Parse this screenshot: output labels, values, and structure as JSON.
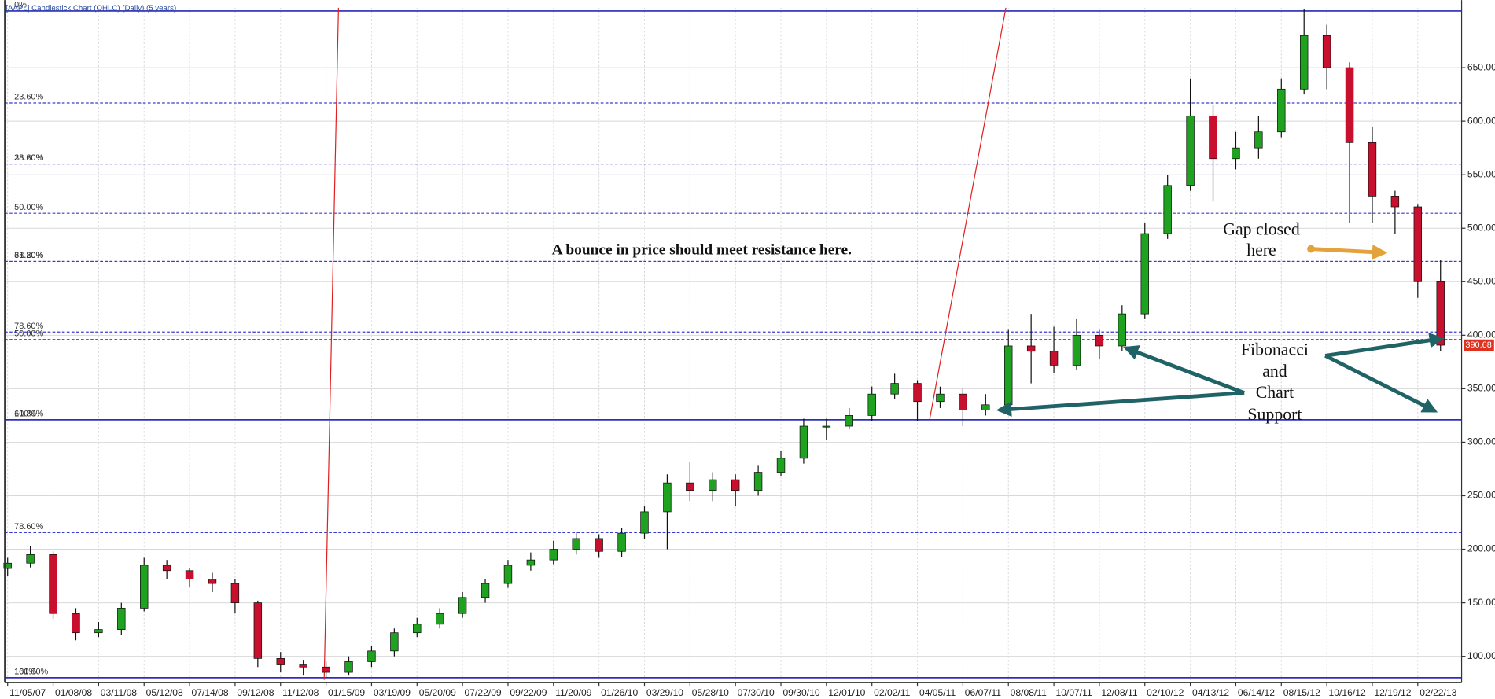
{
  "chart_data": {
    "type": "candlestick",
    "title": "[AAPL] Candlestick Chart (OHLC) (Daily) (5 years)",
    "categories": [
      "11/05/07",
      null,
      "01/08/08",
      null,
      "03/11/08",
      null,
      "05/12/08",
      null,
      "07/14/08",
      null,
      "09/12/08",
      null,
      "11/12/08",
      null,
      "01/15/09",
      null,
      "03/19/09",
      null,
      "05/20/09",
      null,
      "07/22/09",
      null,
      "09/22/09",
      null,
      "11/20/09",
      null,
      "01/26/10",
      null,
      "03/29/10",
      null,
      "05/28/10",
      null,
      "07/30/10",
      null,
      "09/30/10",
      null,
      "12/01/10",
      null,
      "02/02/11",
      null,
      "04/05/11",
      null,
      "06/07/11",
      null,
      "08/08/11",
      null,
      "10/07/11",
      null,
      "12/08/11",
      null,
      "02/10/12",
      null,
      "04/13/12",
      null,
      "06/14/12",
      null,
      "08/15/12",
      null,
      "10/16/12",
      null,
      "12/19/12",
      null,
      "02/22/13",
      null
    ],
    "open": [
      182,
      187,
      195,
      140,
      122,
      125,
      145,
      185,
      180,
      172,
      168,
      150,
      98,
      92,
      90,
      85,
      95,
      105,
      122,
      130,
      140,
      155,
      168,
      185,
      190,
      200,
      210,
      198,
      215,
      235,
      262,
      255,
      265,
      255,
      272,
      285,
      315,
      315,
      325,
      345,
      355,
      338,
      345,
      330,
      335,
      390,
      385,
      372,
      400,
      390,
      420,
      495,
      540,
      605,
      565,
      575,
      590,
      630,
      680,
      650,
      580,
      530,
      520,
      450
    ],
    "high": [
      192,
      203,
      198,
      145,
      132,
      150,
      192,
      190,
      182,
      178,
      172,
      152,
      104,
      96,
      95,
      100,
      110,
      126,
      136,
      145,
      160,
      172,
      190,
      197,
      208,
      215,
      214,
      220,
      240,
      270,
      282,
      272,
      270,
      278,
      292,
      322,
      322,
      332,
      352,
      364,
      358,
      352,
      350,
      345,
      405,
      420,
      408,
      415,
      405,
      428,
      505,
      550,
      640,
      615,
      590,
      605,
      640,
      705,
      690,
      655,
      595,
      535,
      522,
      470
    ],
    "low": [
      175,
      183,
      135,
      115,
      118,
      120,
      142,
      172,
      165,
      160,
      140,
      90,
      85,
      82,
      80,
      82,
      90,
      100,
      118,
      126,
      136,
      150,
      164,
      180,
      186,
      195,
      192,
      193,
      210,
      200,
      245,
      245,
      240,
      250,
      268,
      280,
      302,
      312,
      320,
      340,
      320,
      332,
      315,
      325,
      330,
      355,
      365,
      368,
      378,
      385,
      415,
      490,
      535,
      525,
      555,
      565,
      585,
      625,
      630,
      505,
      505,
      495,
      435,
      385
    ],
    "close": [
      187,
      195,
      140,
      122,
      125,
      145,
      185,
      180,
      172,
      168,
      150,
      98,
      92,
      90,
      85,
      95,
      105,
      122,
      130,
      140,
      155,
      168,
      185,
      190,
      200,
      210,
      198,
      215,
      235,
      262,
      255,
      265,
      255,
      272,
      285,
      315,
      315,
      325,
      345,
      355,
      338,
      345,
      330,
      335,
      390,
      385,
      372,
      400,
      390,
      420,
      495,
      540,
      605,
      565,
      575,
      590,
      630,
      680,
      650,
      580,
      530,
      520,
      450,
      390.68
    ],
    "up_color": "#1fa21f",
    "down_color": "#c8102e",
    "ylim": [
      78,
      706
    ],
    "yticks": [
      {
        "value": 100,
        "label": "100.00"
      },
      {
        "value": 150,
        "label": "150.00"
      },
      {
        "value": 200,
        "label": "200.00"
      },
      {
        "value": 250,
        "label": "250.00"
      },
      {
        "value": 300,
        "label": "300.00"
      },
      {
        "value": 350,
        "label": "350.00"
      },
      {
        "value": 400,
        "label": "400.00"
      },
      {
        "value": 450,
        "label": "450.00"
      },
      {
        "value": 500,
        "label": "500.00"
      },
      {
        "value": 550,
        "label": "550.00"
      },
      {
        "value": 600,
        "label": "600.00"
      },
      {
        "value": 650,
        "label": "650.00"
      }
    ],
    "grid": true,
    "fib_levels": [
      {
        "label": "0%",
        "value": 703,
        "style": "solid"
      },
      {
        "label": "23.60%",
        "value": 617,
        "style": "dashed"
      },
      {
        "label": "38.20%",
        "value": 560,
        "style": "dashed"
      },
      {
        "label": "23.60%",
        "value": 560,
        "style": "dashed"
      },
      {
        "label": "50.00%",
        "value": 514,
        "style": "dashed"
      },
      {
        "label": "61.80%",
        "value": 469,
        "style": "dashed"
      },
      {
        "label": "38.20%",
        "value": 469,
        "style": "dashed"
      },
      {
        "label": "78.60%",
        "value": 403,
        "style": "dashed"
      },
      {
        "label": "50.00%",
        "value": 396,
        "style": "dashed"
      },
      {
        "label": "61.80%",
        "value": 321,
        "style": "solid"
      },
      {
        "label": "100%",
        "value": 321,
        "style": "solid"
      },
      {
        "label": "78.60%",
        "value": 215.5,
        "style": "dashed"
      },
      {
        "label": "100%",
        "value": 80,
        "style": "solid"
      },
      {
        "label": "161.80%",
        "value": 80,
        "style": "solid"
      }
    ],
    "annotations": [
      {
        "lines": [
          "A bounce in price should meet resistance here."
        ]
      },
      {
        "lines": [
          "Gap closed",
          "here"
        ]
      },
      {
        "lines": [
          "Fibonacci",
          "and",
          "Chart",
          "Support"
        ]
      }
    ]
  }
}
